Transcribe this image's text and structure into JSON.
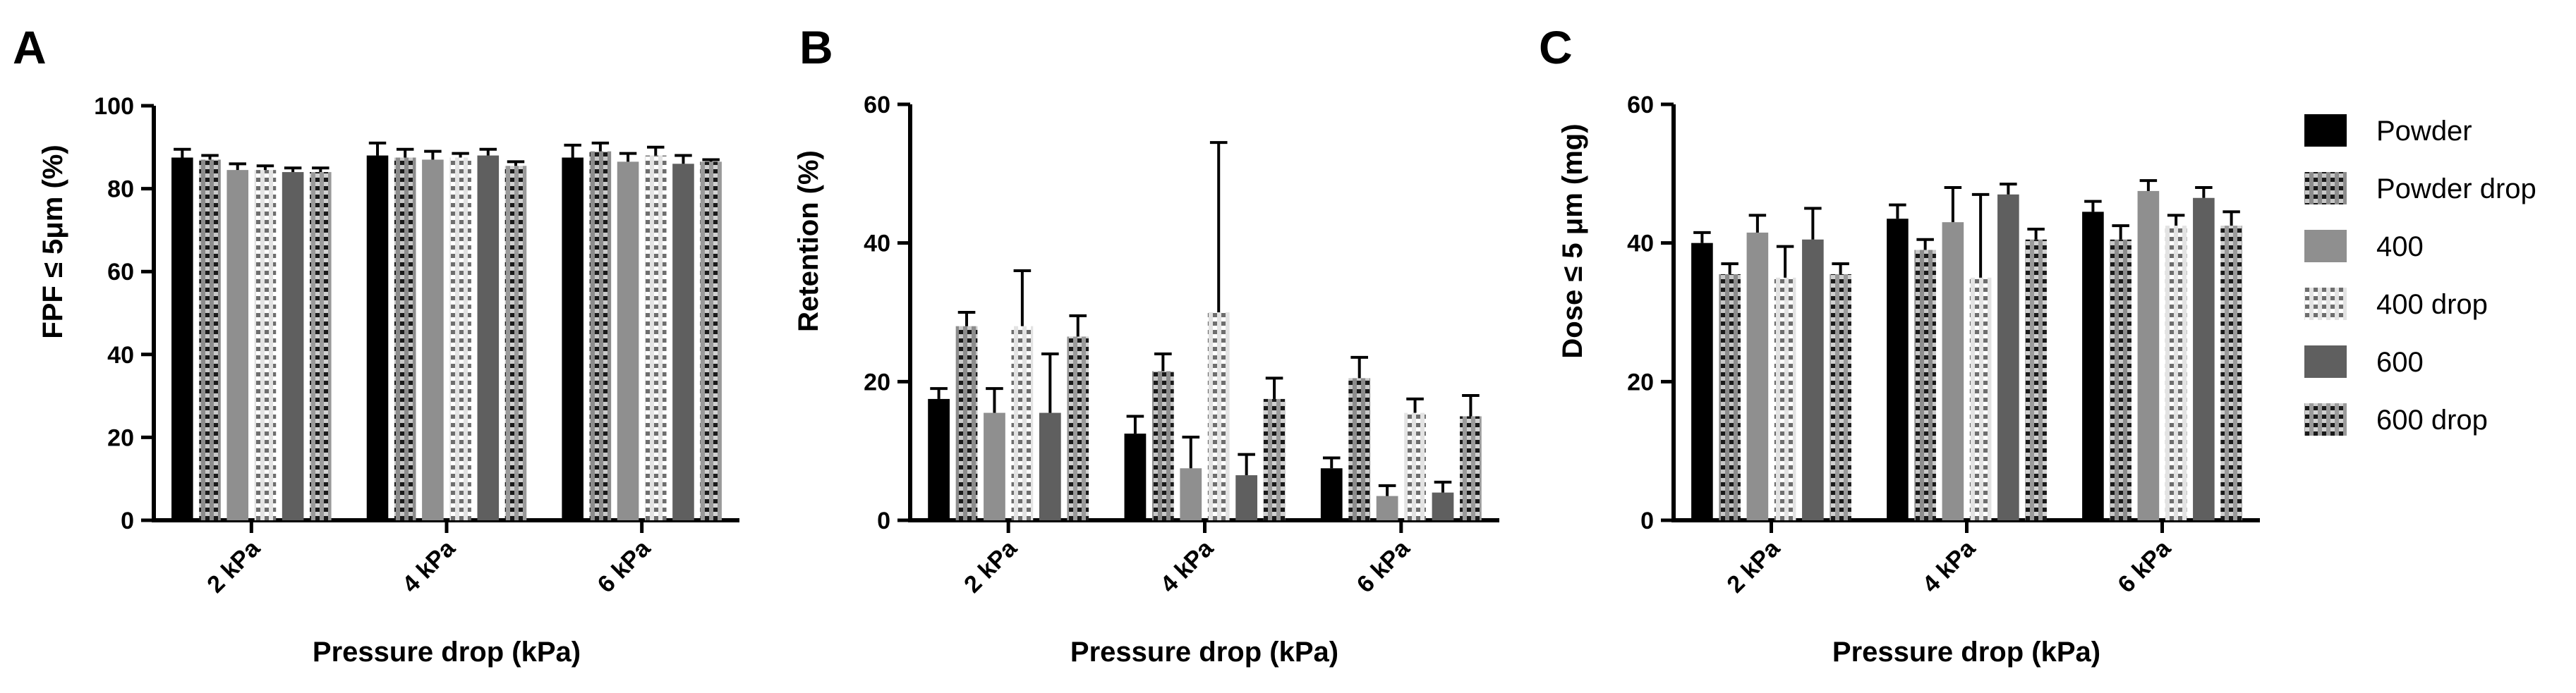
{
  "colors": {
    "Powder": "#000000",
    "Powder drop": "#8c8c8c",
    "400": "#8f8f8f",
    "400 drop": "#d9d9d9",
    "600": "#5f5f5f",
    "600 drop": "#9a9a9a"
  },
  "legend": {
    "items": [
      "Powder",
      "Powder drop",
      "400",
      "400 drop",
      "600",
      "600 drop"
    ]
  },
  "chart_data": [
    {
      "type": "bar",
      "panel": "A",
      "title": "",
      "xlabel": "Pressure drop (kPa)",
      "ylabel": "FPF ≤ 5μm (%)",
      "ylim": [
        0,
        100
      ],
      "yticks": [
        0,
        20,
        40,
        60,
        80,
        100
      ],
      "categories": [
        "2 kPa",
        "4 kPa",
        "6 kPa"
      ],
      "series": [
        {
          "name": "Powder",
          "values": [
            87.5,
            88,
            87.5
          ],
          "errors": [
            2,
            3,
            3
          ]
        },
        {
          "name": "Powder drop",
          "values": [
            87,
            87.5,
            89
          ],
          "errors": [
            1,
            2,
            2
          ]
        },
        {
          "name": "400",
          "values": [
            84.5,
            87,
            86.5
          ],
          "errors": [
            1.5,
            2,
            2
          ]
        },
        {
          "name": "400 drop",
          "values": [
            84.5,
            87.5,
            88
          ],
          "errors": [
            1,
            1,
            2
          ]
        },
        {
          "name": "600",
          "values": [
            84,
            88,
            86
          ],
          "errors": [
            1,
            1.5,
            2
          ]
        },
        {
          "name": "600 drop",
          "values": [
            84,
            85.5,
            86.5
          ],
          "errors": [
            1,
            1,
            0.5
          ]
        }
      ]
    },
    {
      "type": "bar",
      "panel": "B",
      "title": "",
      "xlabel": "Pressure drop (kPa)",
      "ylabel": "Retention (%)",
      "ylim": [
        0,
        60
      ],
      "yticks": [
        0,
        20,
        40,
        60
      ],
      "categories": [
        "2 kPa",
        "4 kPa",
        "6 kPa"
      ],
      "series": [
        {
          "name": "Powder",
          "values": [
            17.5,
            12.5,
            7.5
          ],
          "errors": [
            1.5,
            2.5,
            1.5
          ]
        },
        {
          "name": "Powder drop",
          "values": [
            28,
            21.5,
            20.5
          ],
          "errors": [
            2,
            2.5,
            3
          ]
        },
        {
          "name": "400",
          "values": [
            15.5,
            7.5,
            3.5
          ],
          "errors": [
            3.5,
            4.5,
            1.5
          ]
        },
        {
          "name": "400 drop",
          "values": [
            28,
            30,
            15.5
          ],
          "errors": [
            8,
            24.5,
            2
          ]
        },
        {
          "name": "600",
          "values": [
            15.5,
            6.5,
            4
          ],
          "errors": [
            8.5,
            3,
            1.5
          ]
        },
        {
          "name": "600 drop",
          "values": [
            26.5,
            17.5,
            15
          ],
          "errors": [
            3,
            3,
            3
          ]
        }
      ]
    },
    {
      "type": "bar",
      "panel": "C",
      "title": "",
      "xlabel": "Pressure drop (kPa)",
      "ylabel": "Dose ≤ 5 μm (mg)",
      "ylim": [
        0,
        60
      ],
      "yticks": [
        0,
        20,
        40,
        60
      ],
      "categories": [
        "2 kPa",
        "4 kPa",
        "6 kPa"
      ],
      "series": [
        {
          "name": "Powder",
          "values": [
            40,
            43.5,
            44.5
          ],
          "errors": [
            1.5,
            2,
            1.5
          ]
        },
        {
          "name": "Powder drop",
          "values": [
            35.5,
            39,
            40.5
          ],
          "errors": [
            1.5,
            1.5,
            2
          ]
        },
        {
          "name": "400",
          "values": [
            41.5,
            43,
            47.5
          ],
          "errors": [
            2.5,
            5,
            1.5
          ]
        },
        {
          "name": "400 drop",
          "values": [
            35,
            35,
            42.5
          ],
          "errors": [
            4.5,
            12,
            1.5
          ]
        },
        {
          "name": "600",
          "values": [
            40.5,
            47,
            46.5
          ],
          "errors": [
            4.5,
            1.5,
            1.5
          ]
        },
        {
          "name": "600 drop",
          "values": [
            35.5,
            40.5,
            42.5
          ],
          "errors": [
            1.5,
            1.5,
            2
          ]
        }
      ]
    }
  ]
}
